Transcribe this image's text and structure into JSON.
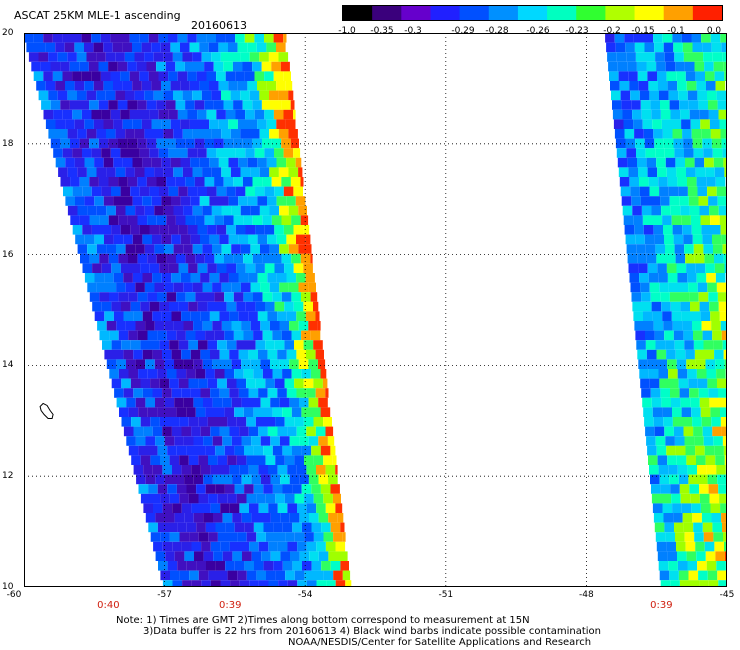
{
  "header": {
    "title": "ASCAT 25KM MLE-1 ascending",
    "date": "20160613"
  },
  "colorbar": {
    "labels": [
      "-1.0",
      "-0.35",
      "-0.3",
      "-0.29",
      "-0.28",
      "-0.26",
      "-0.23",
      "-0.2",
      "-0.15",
      "-0.1",
      "0.0"
    ],
    "colors": [
      "#000000",
      "#3a007c",
      "#6600cc",
      "#2020ff",
      "#0050ff",
      "#0090ff",
      "#00d8ff",
      "#00ffc0",
      "#30ff30",
      "#b0ff00",
      "#ffff00",
      "#ffa000",
      "#ff2000"
    ]
  },
  "axes": {
    "x_ticks": [
      "-60",
      "-57",
      "-54",
      "-51",
      "-48",
      "-45"
    ],
    "x_values": [
      -60,
      -57,
      -54,
      -51,
      -48,
      -45
    ],
    "y_ticks": [
      "20",
      "18",
      "16",
      "14",
      "12",
      "10"
    ],
    "y_values": [
      20,
      18,
      16,
      14,
      12,
      10
    ],
    "xlim": [
      -60,
      -45
    ],
    "ylim": [
      10,
      20
    ],
    "grid": true
  },
  "pass_times": [
    {
      "text": "0:40",
      "lon": -58.2
    },
    {
      "text": "0:39",
      "lon": -55.6
    },
    {
      "text": "0:39",
      "lon": -46.4
    }
  ],
  "footer": {
    "note1": "Note: 1) Times are GMT 2)Times along bottom correspond to measurement at 15N",
    "note2": "3)Data buffer is 22 hrs from 20160613 4) Black wind barbs indicate possible contamination",
    "credit": "NOAA/NESDIS/Center for Satellite Applications and Research"
  },
  "map_data": {
    "swaths": [
      {
        "name": "west-swath",
        "west_lat20": -60.0,
        "east_lat20": -54.4,
        "west_lat10": -57.0,
        "east_lat10": -53.0
      },
      {
        "name": "east-swath",
        "west_lat20": -47.6,
        "east_lat20": -45.0,
        "west_lat10": -46.4,
        "east_lat10": -45.0
      }
    ],
    "island": {
      "name": "barbados",
      "lon": -59.55,
      "lat": 13.15
    }
  }
}
